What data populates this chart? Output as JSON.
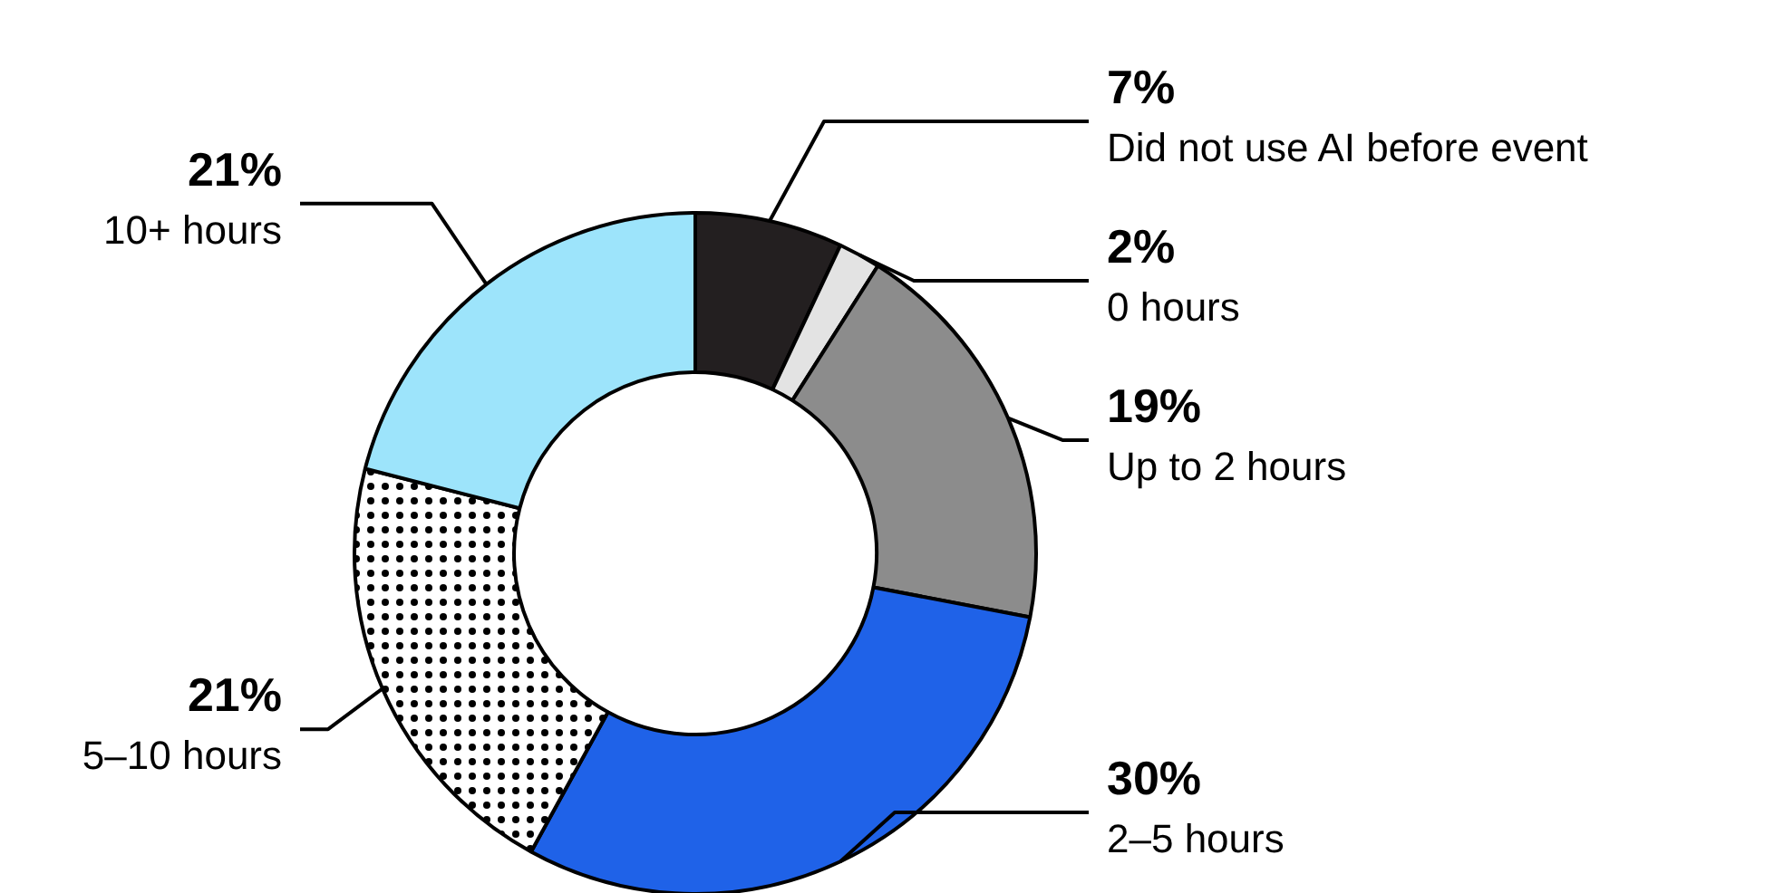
{
  "chart_data": {
    "type": "donut",
    "categories": [
      "Did not use AI before event",
      "0 hours",
      "Up to 2 hours",
      "2–5 hours",
      "5–10 hours",
      "10+ hours"
    ],
    "values": [
      7,
      2,
      19,
      30,
      21,
      21
    ],
    "value_labels": [
      "7%",
      "2%",
      "19%",
      "30%",
      "21%",
      "21%"
    ],
    "colors": [
      "#231f20",
      "#e3e3e3",
      "#8c8c8c",
      "#1f62e8",
      "#ffffff",
      "#9de4fb"
    ]
  }
}
